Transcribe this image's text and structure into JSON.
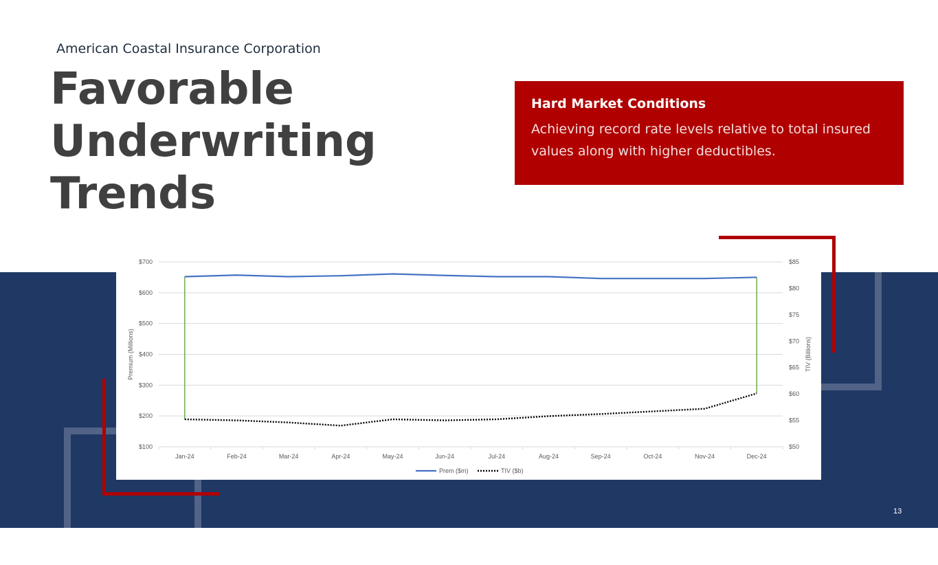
{
  "header": {
    "company": "American Coastal Insurance Corporation",
    "title_lines": [
      "Favorable",
      "Underwriting",
      "Trends"
    ]
  },
  "callout": {
    "title": "Hard Market Conditions",
    "text": "Achieving record rate levels relative to total insured values along with higher deductibles."
  },
  "page_number": "13",
  "colors": {
    "navy": "#203864",
    "red": "#b00000",
    "prem_line": "#4472c4",
    "tiv_line": "#000000",
    "connector": "#70ad47"
  },
  "chart_data": {
    "type": "line",
    "categories": [
      "Jan-24",
      "Feb-24",
      "Mar-24",
      "Apr-24",
      "May-24",
      "Jun-24",
      "Jul-24",
      "Aug-24",
      "Sep-24",
      "Oct-24",
      "Nov-24",
      "Dec-24"
    ],
    "series": [
      {
        "name": "Prem ($m)",
        "axis": "left",
        "style": "solid",
        "values": [
          652,
          657,
          652,
          655,
          661,
          656,
          652,
          652,
          646,
          646,
          646,
          650
        ]
      },
      {
        "name": "TIV ($b)",
        "axis": "right",
        "style": "dotted",
        "values": [
          55.2,
          55.0,
          54.6,
          54.0,
          55.2,
          55.0,
          55.2,
          55.8,
          56.2,
          56.7,
          57.2,
          60.1
        ]
      }
    ],
    "ylabel": "Premium  (Millions)",
    "y2label": "TIV (Billions)",
    "ylim": [
      100,
      700
    ],
    "y_ticks": [
      "$100",
      "$200",
      "$300",
      "$400",
      "$500",
      "$600",
      "$700"
    ],
    "y2lim": [
      50,
      85
    ],
    "y2_ticks": [
      "$50",
      "$55",
      "$60",
      "$65",
      "$70",
      "$75",
      "$80",
      "$85"
    ],
    "grid": true,
    "legend_position": "bottom"
  }
}
